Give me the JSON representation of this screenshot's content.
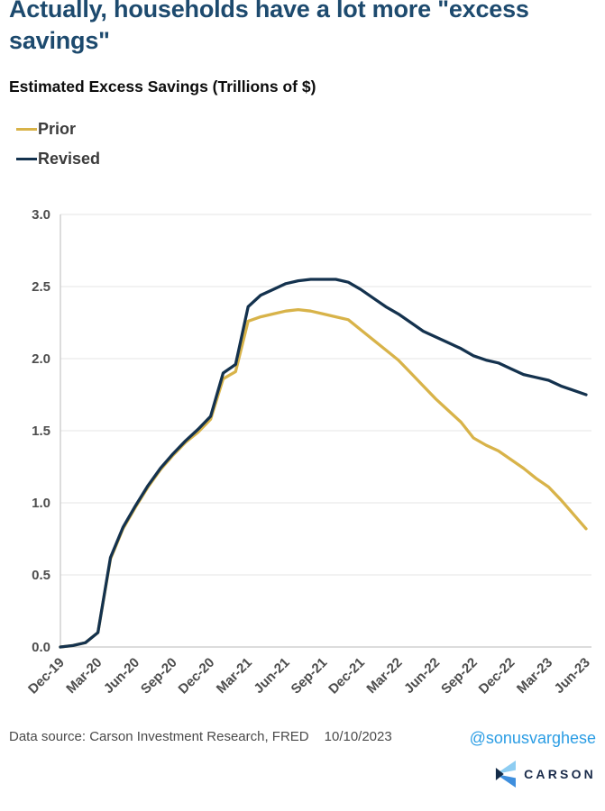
{
  "title": "Actually, households have a lot more \"excess savings\"",
  "subtitle": "Estimated Excess Savings (Trillions of $)",
  "footer": {
    "source": "Data source: Carson Investment Research, FRED",
    "date": "10/10/2023",
    "handle": "@sonusvarghese",
    "brand": "CARSON"
  },
  "colors": {
    "title": "#1d4a6e",
    "prior_line": "#d8b349",
    "revised_line": "#14324e",
    "grid": "#ebebeb",
    "spine": "#c9c9c9",
    "tick_text": "#4d4d4d",
    "handle_blue": "#2b9de4",
    "logo_light_blue": "#8ecdf2",
    "logo_mid_blue": "#3e8edd",
    "logo_navy": "#142c49"
  },
  "chart_data": {
    "type": "line",
    "title": "Estimated Excess Savings (Trillions of $)",
    "xlabel": "",
    "ylabel": "",
    "ylim": [
      0.0,
      3.0
    ],
    "yticks": [
      0.0,
      0.5,
      1.0,
      1.5,
      2.0,
      2.5,
      3.0
    ],
    "grid": true,
    "legend_position": "top-left",
    "x": [
      "Dec-19",
      "Jan-20",
      "Feb-20",
      "Mar-20",
      "Apr-20",
      "May-20",
      "Jun-20",
      "Jul-20",
      "Aug-20",
      "Sep-20",
      "Oct-20",
      "Nov-20",
      "Dec-20",
      "Jan-21",
      "Feb-21",
      "Mar-21",
      "Apr-21",
      "May-21",
      "Jun-21",
      "Jul-21",
      "Aug-21",
      "Sep-21",
      "Oct-21",
      "Nov-21",
      "Dec-21",
      "Jan-22",
      "Feb-22",
      "Mar-22",
      "Apr-22",
      "May-22",
      "Jun-22",
      "Jul-22",
      "Aug-22",
      "Sep-22",
      "Oct-22",
      "Nov-22",
      "Dec-22",
      "Jan-23",
      "Feb-23",
      "Mar-23",
      "Apr-23",
      "May-23",
      "Jun-23"
    ],
    "x_tick_every": 3,
    "x_tick_labels": [
      "Dec-19",
      "Mar-20",
      "Jun-20",
      "Sep-20",
      "Dec-20",
      "Mar-21",
      "Jun-21",
      "Sep-21",
      "Dec-21",
      "Mar-22",
      "Jun-22",
      "Sep-22",
      "Dec-22",
      "Mar-23",
      "Jun-23"
    ],
    "series": [
      {
        "name": "Prior",
        "color": "#d8b349",
        "values": [
          0.0,
          0.01,
          0.03,
          0.1,
          0.61,
          0.82,
          0.97,
          1.11,
          1.23,
          1.33,
          1.42,
          1.49,
          1.58,
          1.86,
          1.91,
          2.26,
          2.29,
          2.31,
          2.33,
          2.34,
          2.33,
          2.31,
          2.29,
          2.27,
          2.2,
          2.13,
          2.06,
          1.99,
          1.9,
          1.81,
          1.72,
          1.64,
          1.56,
          1.45,
          1.4,
          1.36,
          1.3,
          1.24,
          1.17,
          1.11,
          1.02,
          0.92,
          0.82
        ]
      },
      {
        "name": "Revised",
        "color": "#14324e",
        "values": [
          0.0,
          0.01,
          0.03,
          0.1,
          0.62,
          0.83,
          0.98,
          1.12,
          1.24,
          1.34,
          1.43,
          1.51,
          1.6,
          1.9,
          1.96,
          2.36,
          2.44,
          2.48,
          2.52,
          2.54,
          2.55,
          2.55,
          2.55,
          2.53,
          2.48,
          2.42,
          2.36,
          2.31,
          2.25,
          2.19,
          2.15,
          2.11,
          2.07,
          2.02,
          1.99,
          1.97,
          1.93,
          1.89,
          1.87,
          1.85,
          1.81,
          1.78,
          1.75
        ]
      }
    ]
  }
}
